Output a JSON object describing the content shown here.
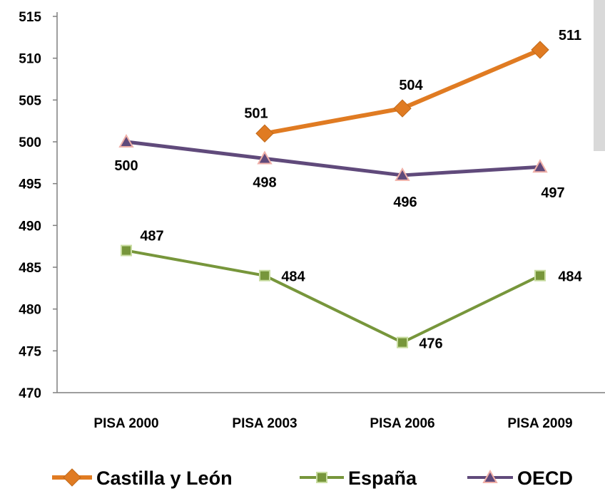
{
  "chart_data": {
    "type": "line",
    "title": "",
    "xlabel": "",
    "ylabel": "",
    "categories": [
      "PISA 2000",
      "PISA 2003",
      "PISA 2006",
      "PISA 2009"
    ],
    "ylim": [
      470,
      515
    ],
    "yticks": [
      470,
      475,
      480,
      485,
      490,
      495,
      500,
      505,
      510,
      515
    ],
    "grid": false,
    "legend_position": "bottom",
    "series": [
      {
        "name": "Castilla y León",
        "values": [
          null,
          501,
          504,
          511
        ],
        "labels": [
          "",
          "501",
          "504",
          "511"
        ],
        "color": "#e07b22",
        "marker": "diamond"
      },
      {
        "name": "España",
        "values": [
          487,
          484,
          476,
          484
        ],
        "labels": [
          "487",
          "484",
          "476",
          "484"
        ],
        "color": "#77963b",
        "marker": "square"
      },
      {
        "name": "OECD",
        "values": [
          500,
          498,
          496,
          497
        ],
        "labels": [
          "500",
          "498",
          "496",
          "497"
        ],
        "color": "#604a7b",
        "marker": "triangle"
      }
    ]
  }
}
